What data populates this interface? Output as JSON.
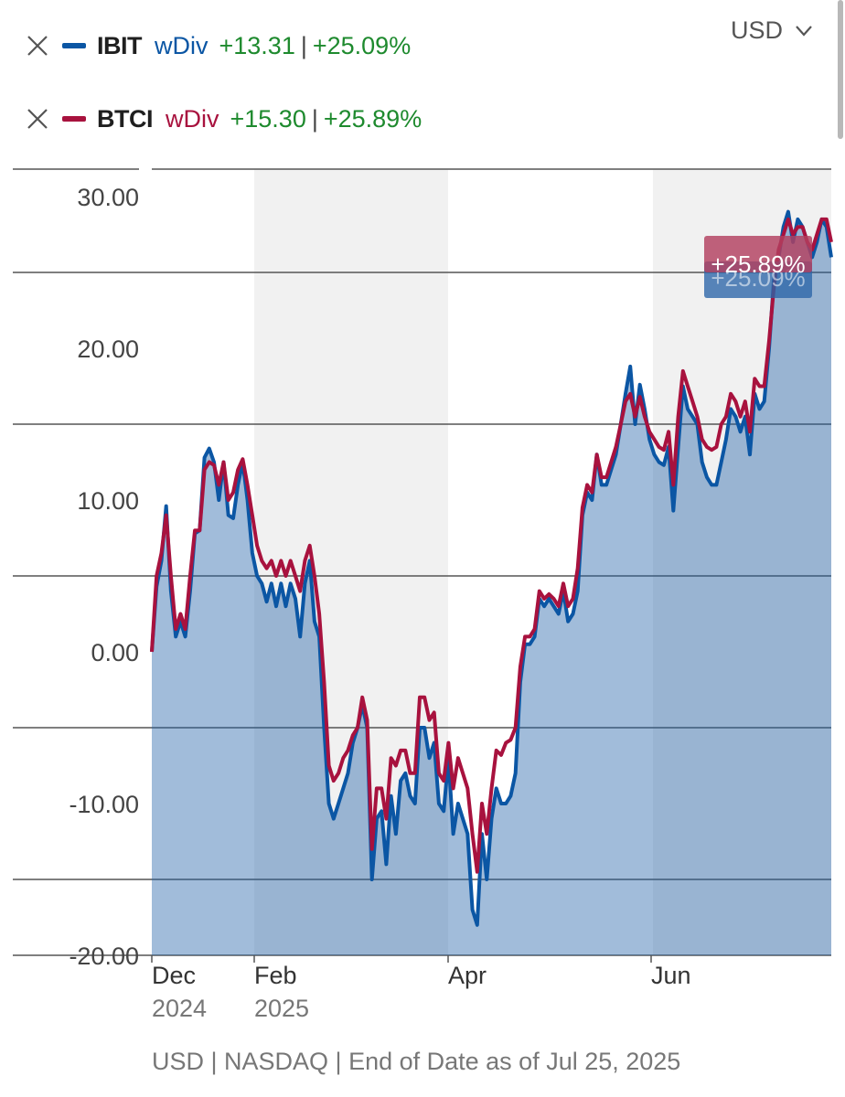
{
  "currency_selector": {
    "label": "USD",
    "icon": "chevron-down-icon"
  },
  "legend": [
    {
      "ticker": "IBIT",
      "mode": "wDiv",
      "change": "+13.31",
      "percent": "+25.09%",
      "color": "#0b56a4",
      "icon": "close-icon"
    },
    {
      "ticker": "BTCI",
      "mode": "wDiv",
      "change": "+15.30",
      "percent": "+25.89%",
      "color": "#a8123e",
      "icon": "close-icon"
    }
  ],
  "separator": "|",
  "footer": "USD | NASDAQ | End of Date as of Jul 25, 2025",
  "chart_data": {
    "type": "area",
    "x_ticks": [
      {
        "month": "Dec",
        "year": "2024"
      },
      {
        "month": "Feb",
        "year": "2025"
      },
      {
        "month": "Apr",
        "year": ""
      },
      {
        "month": "Jun",
        "year": ""
      }
    ],
    "y_ticks": [
      "30.00",
      "20.00",
      "10.00",
      "0.00",
      "-10.00",
      "-20.00"
    ],
    "ylim": [
      -20,
      30
    ],
    "end_labels": [
      {
        "series": "BTCI",
        "text": "+25.89%"
      },
      {
        "series": "IBIT",
        "text": "+25.09%"
      }
    ],
    "series": [
      {
        "name": "IBIT",
        "color": "#0b56a4",
        "values": [
          0,
          4.3,
          6,
          9.6,
          4,
          1,
          2,
          1,
          4,
          7.8,
          8,
          12.8,
          13.4,
          12.5,
          10,
          12.5,
          9,
          8.8,
          11,
          12.5,
          10,
          6.5,
          5,
          4.5,
          3.3,
          4.5,
          3,
          4.5,
          3,
          4.5,
          3.5,
          1,
          4.5,
          6,
          2,
          1,
          -5,
          -10,
          -11,
          -10,
          -9,
          -8,
          -6,
          -5,
          -3.5,
          -5,
          -15,
          -11,
          -10.5,
          -14,
          -9.5,
          -12,
          -8.5,
          -8,
          -9.5,
          -10,
          -5,
          -5,
          -7,
          -6,
          -10,
          -10.5,
          -7,
          -12,
          -10,
          -11,
          -12,
          -17,
          -18,
          -12,
          -15,
          -11,
          -9,
          -10,
          -10,
          -9.5,
          -8,
          -2,
          0.5,
          0.5,
          1,
          3.5,
          3,
          3.5,
          3,
          2.5,
          4,
          2,
          2.5,
          4,
          9,
          10.5,
          10,
          13,
          11,
          11,
          12,
          13,
          15,
          17,
          18.8,
          15,
          17.6,
          16,
          14,
          13,
          12.5,
          12.3,
          13.5,
          9.3,
          13.5,
          17.5,
          16,
          15.5,
          15,
          12.5,
          11.5,
          11,
          11,
          12.5,
          14,
          16,
          15.5,
          14.5,
          15.5,
          13,
          17,
          16,
          16.5,
          20,
          24.5,
          26,
          28,
          29,
          27,
          28.5,
          28,
          27,
          26,
          27,
          28.5,
          28,
          26
        ]
      },
      {
        "name": "BTCI",
        "color": "#a8123e",
        "values": [
          0,
          5,
          6.5,
          9,
          5,
          1.5,
          2.5,
          1.5,
          5,
          8,
          8,
          12,
          12.5,
          12.3,
          11,
          12.5,
          10,
          10.5,
          12,
          12.7,
          11,
          9,
          7,
          6,
          5.5,
          6,
          5,
          6,
          5,
          6,
          5,
          4,
          6,
          7,
          5,
          2.5,
          -2,
          -7.5,
          -8.5,
          -8,
          -7,
          -6.5,
          -5.5,
          -5,
          -3,
          -4.5,
          -13,
          -9,
          -9,
          -11,
          -7,
          -7.5,
          -6.5,
          -6.5,
          -8,
          -8,
          -3,
          -3,
          -4.5,
          -4,
          -8,
          -8.5,
          -6,
          -9,
          -7,
          -8,
          -9,
          -12,
          -14.5,
          -10,
          -12,
          -9,
          -6.5,
          -6.8,
          -6,
          -5.8,
          -5,
          -1,
          1,
          1,
          1.5,
          4,
          3.5,
          3.8,
          3.5,
          3,
          4.5,
          3,
          3.5,
          5.5,
          9.5,
          11,
          10.5,
          13,
          11.5,
          11.5,
          12.5,
          13.5,
          15,
          16.5,
          17,
          15.5,
          16.8,
          15.5,
          14.5,
          14,
          13.5,
          13.3,
          14.5,
          11,
          15.5,
          18.5,
          17.5,
          16.5,
          15.5,
          14,
          13.5,
          13.3,
          13.5,
          15,
          15.5,
          17,
          16.5,
          15.5,
          16.5,
          14.5,
          18,
          17.5,
          17.5,
          20.5,
          24,
          26.5,
          27.5,
          28.5,
          27.5,
          28,
          28,
          27,
          26.5,
          27.5,
          28.5,
          28.5,
          27
        ]
      }
    ]
  }
}
